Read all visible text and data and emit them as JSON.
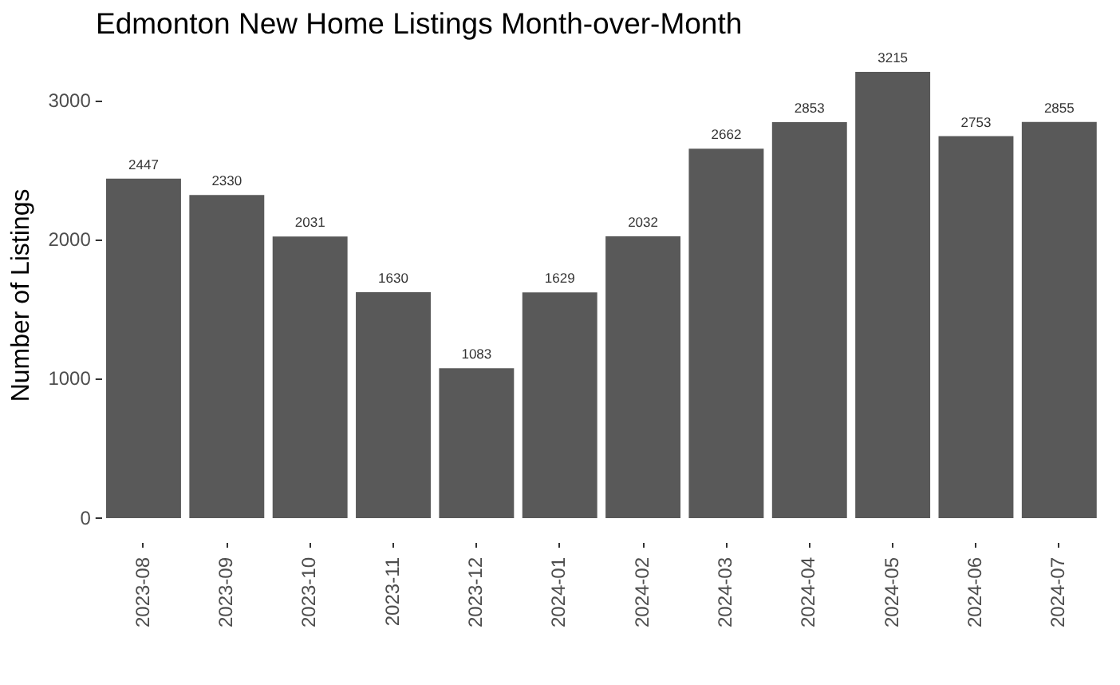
{
  "chart_data": {
    "type": "bar",
    "title": "Edmonton New Home Listings Month-over-Month",
    "ylabel": "Number of Listings",
    "categories": [
      "2023-08",
      "2023-09",
      "2023-10",
      "2023-11",
      "2023-12",
      "2024-01",
      "2024-02",
      "2024-03",
      "2024-04",
      "2024-05",
      "2024-06",
      "2024-07"
    ],
    "values": [
      2447,
      2330,
      2031,
      1630,
      1083,
      1629,
      2032,
      2662,
      2853,
      3215,
      2753,
      2855
    ],
    "color": "#595959",
    "ylim": [
      0,
      3215
    ],
    "yticks": [
      0,
      1000,
      2000,
      3000
    ],
    "grid": false,
    "legend": false,
    "data_labels": true
  }
}
